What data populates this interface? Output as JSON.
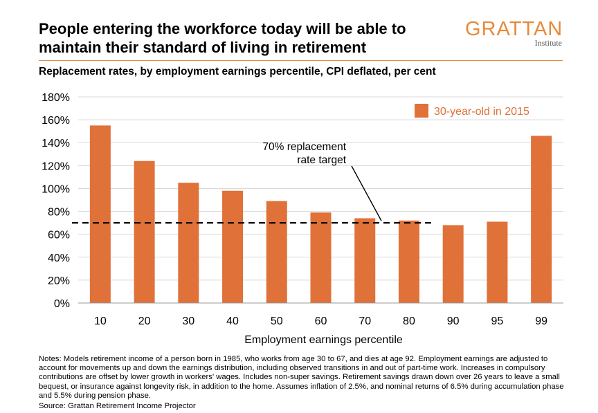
{
  "header": {
    "title": "People entering the workforce today will be able to maintain their standard of living in retirement",
    "subtitle": "Replacement rates, by employment earnings percentile, CPI deflated, per cent",
    "logo_main": "GRATTAN",
    "logo_sub": "Institute"
  },
  "chart_data": {
    "type": "bar",
    "categories": [
      "10",
      "20",
      "30",
      "40",
      "50",
      "60",
      "70",
      "80",
      "90",
      "95",
      "99"
    ],
    "series": [
      {
        "name": "30-year-old in 2015",
        "values": [
          155,
          124,
          105,
          98,
          89,
          79,
          74,
          72,
          68,
          71,
          146
        ]
      }
    ],
    "xlabel": "Employment earnings percentile",
    "ylabel": "",
    "ylim": [
      0,
      180
    ],
    "yticks": [
      0,
      20,
      40,
      60,
      80,
      100,
      120,
      140,
      160,
      180
    ],
    "ytick_suffix": "%",
    "grid": true,
    "legend_position": "top-right",
    "reference_line": {
      "value": 70,
      "label_line1": "70% replacement",
      "label_line2": "rate target"
    },
    "colors": {
      "bar": "#e07139",
      "grid": "#d9d9d9",
      "axis": "#999999",
      "reference": "#000000"
    }
  },
  "footer": {
    "notes": "Notes: Models retirement income of a person born in 1985, who works from age 30 to 67, and dies at age 92. Employment earnings are adjusted to account for movements up and down the earnings distribution, including observed transitions in and out of part-time work. Increases in compulsory contributions are offset by lower growth in workers' wages. Includes non-super savings. Retirement savings drawn down over 26 years to leave a small bequest, or insurance against longevity risk, in addition to the home. Assumes inflation of 2.5%, and nominal returns of 6.5% during accumulation phase and 5.5% during pension phase.",
    "source": "Source: Grattan Retirement Income Projector"
  }
}
